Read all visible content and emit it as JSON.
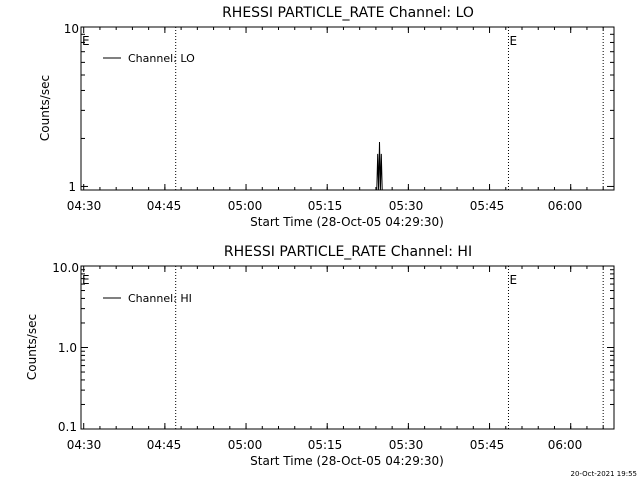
{
  "chart_data": [
    {
      "type": "line",
      "title": "RHESSI PARTICLE_RATE Channel: LO",
      "xlabel": "Start Time (28-Oct-05 04:29:30)",
      "ylabel": "Counts/sec",
      "y_scale": "log",
      "ylim": [
        0.95,
        10
      ],
      "xlim": [
        "04:29:30",
        "06:08:00"
      ],
      "x_tick_labels": [
        "04:30",
        "04:45",
        "05:00",
        "05:15",
        "05:30",
        "05:45",
        "06:00"
      ],
      "y_tick_labels": [
        "1",
        "10"
      ],
      "legend": "top-left",
      "series": [
        {
          "name": "Channel: LO",
          "points": [
            {
              "x": "05:24:10",
              "y": 0.95
            },
            {
              "x": "05:24:20",
              "y": 1.6
            },
            {
              "x": "05:24:30",
              "y": 0.95
            },
            {
              "x": "05:24:40",
              "y": 1.9
            },
            {
              "x": "05:24:50",
              "y": 0.95
            },
            {
              "x": "05:25:00",
              "y": 1.6
            },
            {
              "x": "05:25:10",
              "y": 0.95
            }
          ]
        }
      ],
      "event_lines": [
        "04:47:00",
        "05:48:30",
        "06:06:00"
      ],
      "event_flags": [
        {
          "x": "04:29:30",
          "text": "E"
        },
        {
          "x": "05:48:30",
          "text": "E"
        }
      ]
    },
    {
      "type": "line",
      "title": "RHESSI PARTICLE_RATE Channel: HI",
      "xlabel": "Start Time (28-Oct-05 04:29:30)",
      "ylabel": "Counts/sec",
      "y_scale": "log",
      "ylim": [
        0.1,
        10
      ],
      "xlim": [
        "04:29:30",
        "06:08:00"
      ],
      "x_tick_labels": [
        "04:30",
        "04:45",
        "05:00",
        "05:15",
        "05:30",
        "05:45",
        "06:00"
      ],
      "y_tick_labels": [
        "0.1",
        "1.0",
        "10.0"
      ],
      "legend": "top-left",
      "series": [
        {
          "name": "Channel: HI",
          "points": []
        }
      ],
      "event_lines": [
        "04:47:00",
        "05:48:30",
        "06:06:00"
      ],
      "event_flags": [
        {
          "x": "04:29:30",
          "text": "E"
        },
        {
          "x": "05:48:30",
          "text": "E"
        }
      ]
    }
  ],
  "footer": {
    "timestamp": "20-Oct-2021 19:55"
  }
}
